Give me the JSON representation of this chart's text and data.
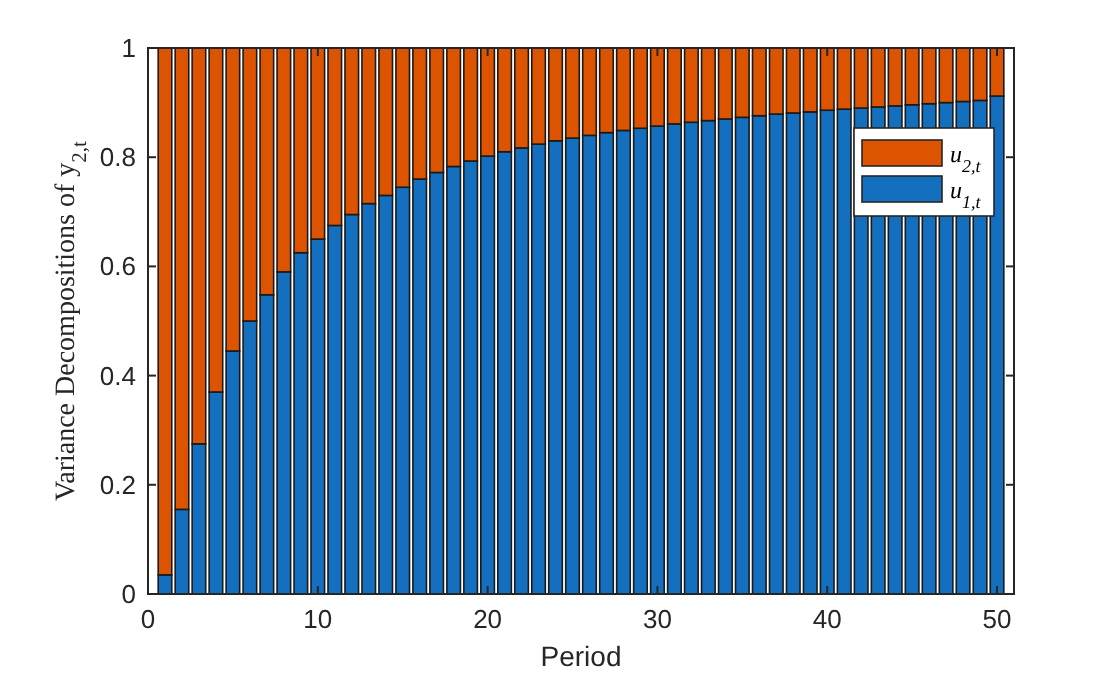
{
  "chart_data": {
    "type": "bar",
    "stacked": true,
    "xlabel": "Period",
    "ylabel": "Variance Decompositions of y$_{2,t}$",
    "x": [
      1,
      2,
      3,
      4,
      5,
      6,
      7,
      8,
      9,
      10,
      11,
      12,
      13,
      14,
      15,
      16,
      17,
      18,
      19,
      20,
      21,
      22,
      23,
      24,
      25,
      26,
      27,
      28,
      29,
      30,
      31,
      32,
      33,
      34,
      35,
      36,
      37,
      38,
      39,
      40,
      41,
      42,
      43,
      44,
      45,
      46,
      47,
      48,
      49,
      50
    ],
    "xlim": [
      0,
      51
    ],
    "xticks": [
      0,
      10,
      20,
      30,
      40,
      50
    ],
    "ylim": [
      0,
      1
    ],
    "yticks": [
      0,
      0.2,
      0.4,
      0.6,
      0.8,
      1
    ],
    "legend": "top right",
    "series": [
      {
        "name": "u$_{1,t}$",
        "color": "#1470be",
        "values": [
          0.035,
          0.155,
          0.275,
          0.37,
          0.445,
          0.5,
          0.548,
          0.59,
          0.625,
          0.65,
          0.675,
          0.695,
          0.715,
          0.73,
          0.745,
          0.76,
          0.772,
          0.783,
          0.793,
          0.802,
          0.81,
          0.817,
          0.824,
          0.83,
          0.835,
          0.84,
          0.845,
          0.849,
          0.853,
          0.857,
          0.861,
          0.864,
          0.867,
          0.87,
          0.873,
          0.876,
          0.879,
          0.881,
          0.883,
          0.886,
          0.888,
          0.89,
          0.892,
          0.894,
          0.896,
          0.898,
          0.9,
          0.902,
          0.904,
          0.912
        ]
      },
      {
        "name": "u$_{2,t}$",
        "color": "#dd5400",
        "values": [
          0.965,
          0.845,
          0.725,
          0.63,
          0.555,
          0.5,
          0.452,
          0.41,
          0.375,
          0.35,
          0.325,
          0.305,
          0.285,
          0.27,
          0.255,
          0.24,
          0.228,
          0.217,
          0.207,
          0.198,
          0.19,
          0.183,
          0.176,
          0.17,
          0.165,
          0.16,
          0.155,
          0.151,
          0.147,
          0.143,
          0.139,
          0.136,
          0.133,
          0.13,
          0.127,
          0.124,
          0.121,
          0.119,
          0.117,
          0.114,
          0.112,
          0.11,
          0.108,
          0.106,
          0.104,
          0.102,
          0.1,
          0.098,
          0.096,
          0.088
        ]
      }
    ]
  }
}
